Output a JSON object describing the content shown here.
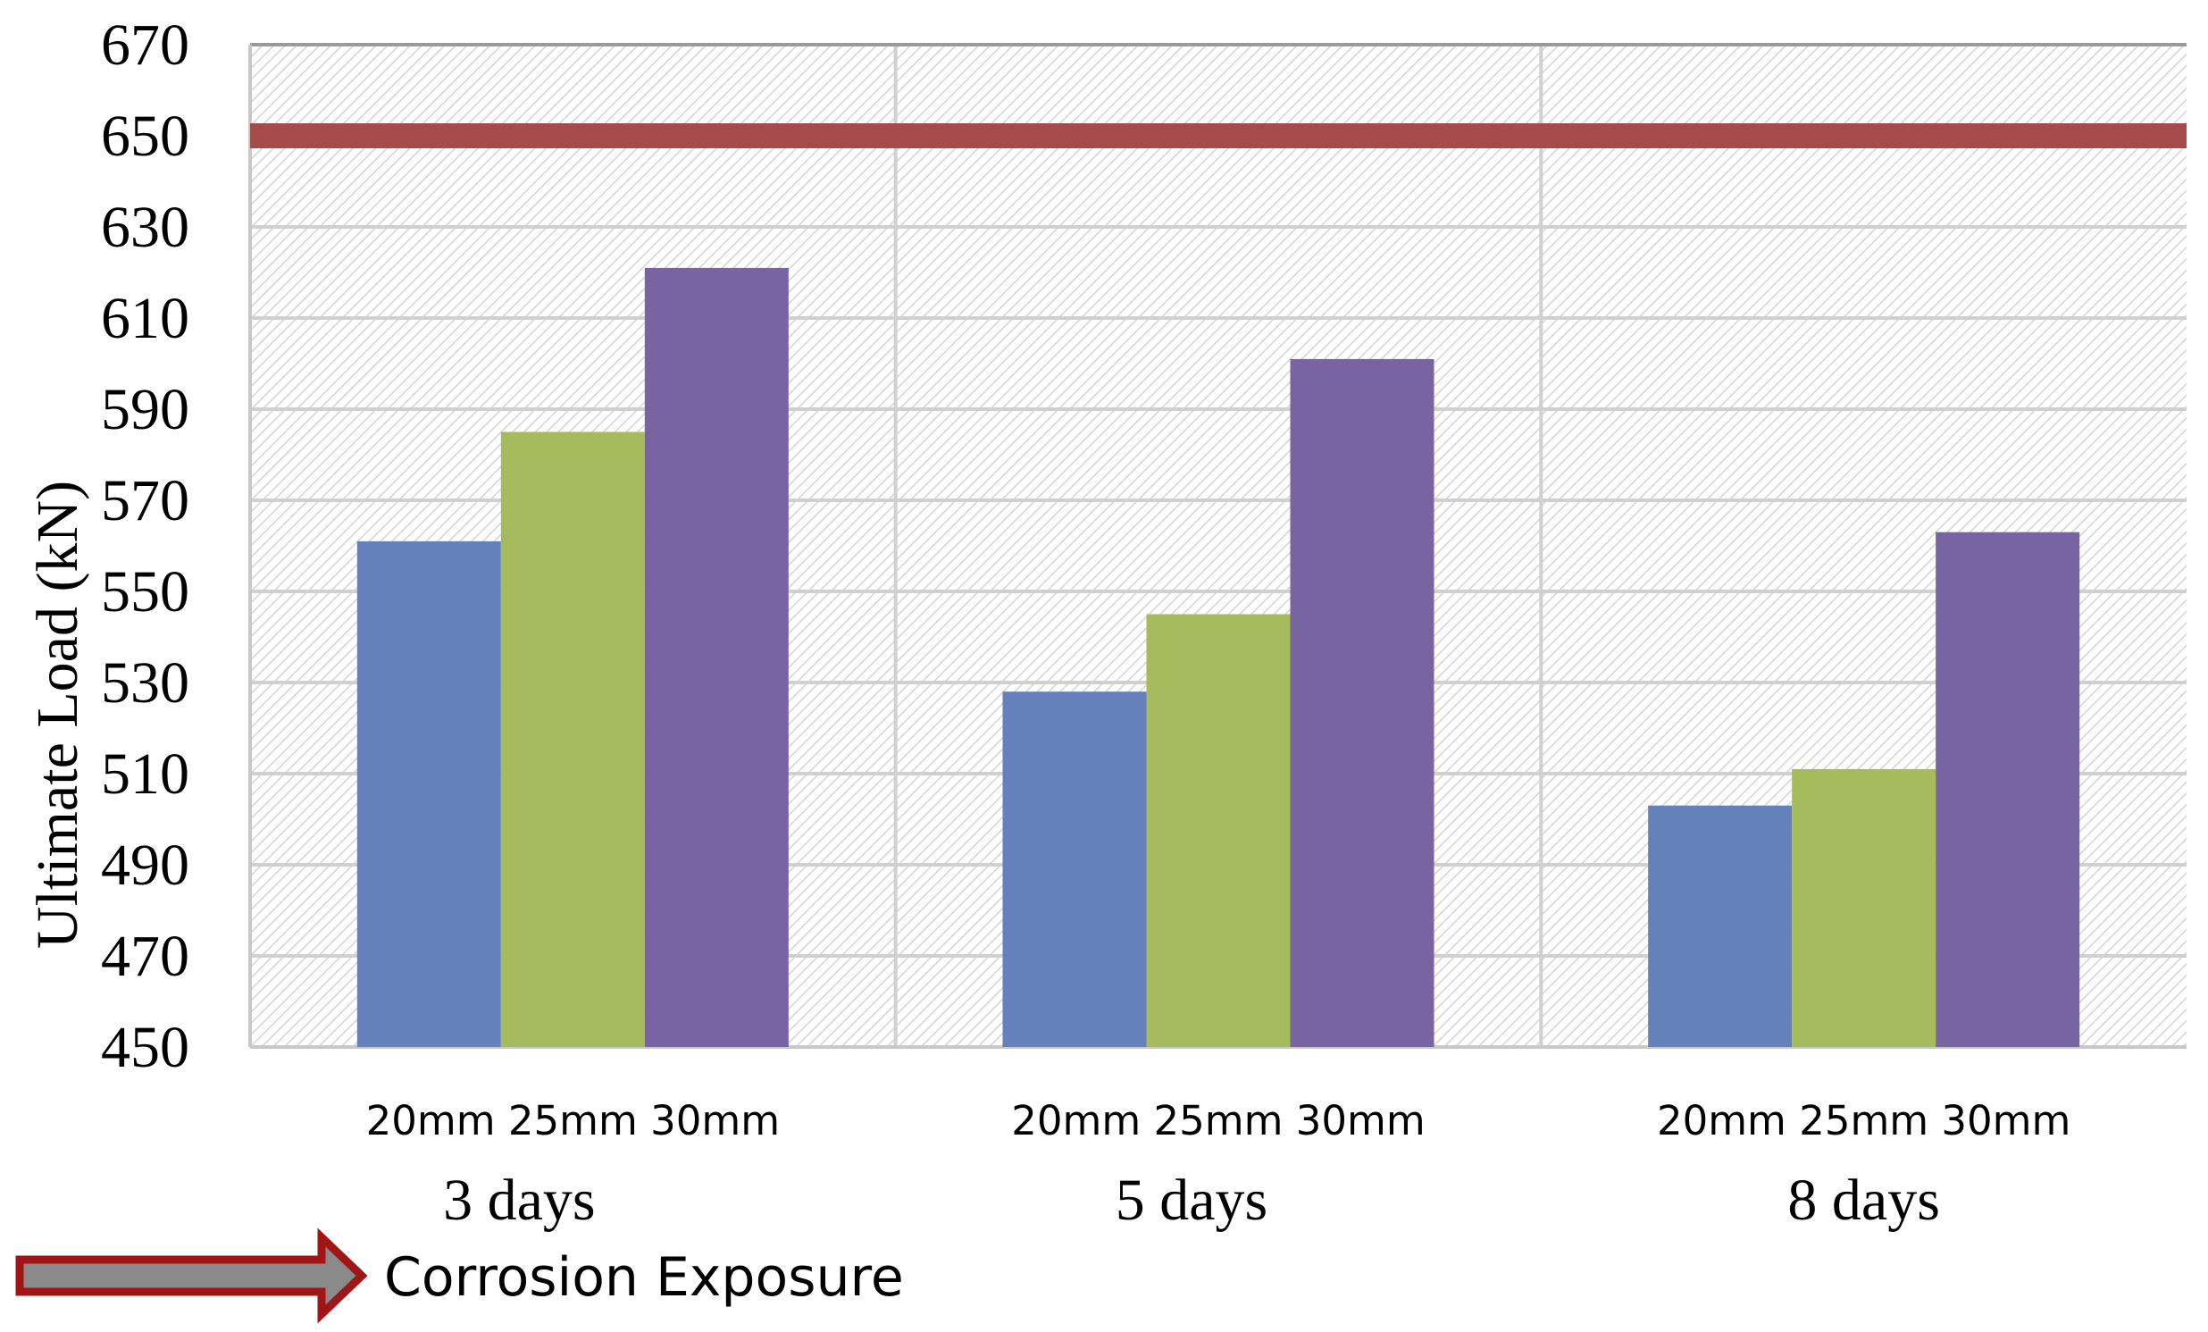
{
  "chart_data": {
    "type": "bar",
    "categories": [
      "3 days",
      "5 days",
      "8 days"
    ],
    "subcategory_label": "20mm 25mm 30mm",
    "series": [
      {
        "name": "20mm",
        "color": "#6581bb",
        "values": [
          561,
          528,
          503
        ]
      },
      {
        "name": "25mm",
        "color": "#a5bb5d",
        "values": [
          585,
          545,
          511
        ]
      },
      {
        "name": "30mm",
        "color": "#7864a1",
        "values": [
          621,
          601,
          563
        ]
      }
    ],
    "reference_line": {
      "value": 650,
      "color": "#a64b4b"
    },
    "ylabel": "Ultimate Load (kN)",
    "xlabel": "",
    "ylim": [
      450,
      670
    ],
    "yticks": [
      450,
      470,
      490,
      510,
      530,
      550,
      570,
      590,
      610,
      630,
      650,
      670
    ],
    "grid": true,
    "legend": "none",
    "annotation": {
      "text": "Corrosion Exposure",
      "arrow_color": "#a01515"
    }
  }
}
